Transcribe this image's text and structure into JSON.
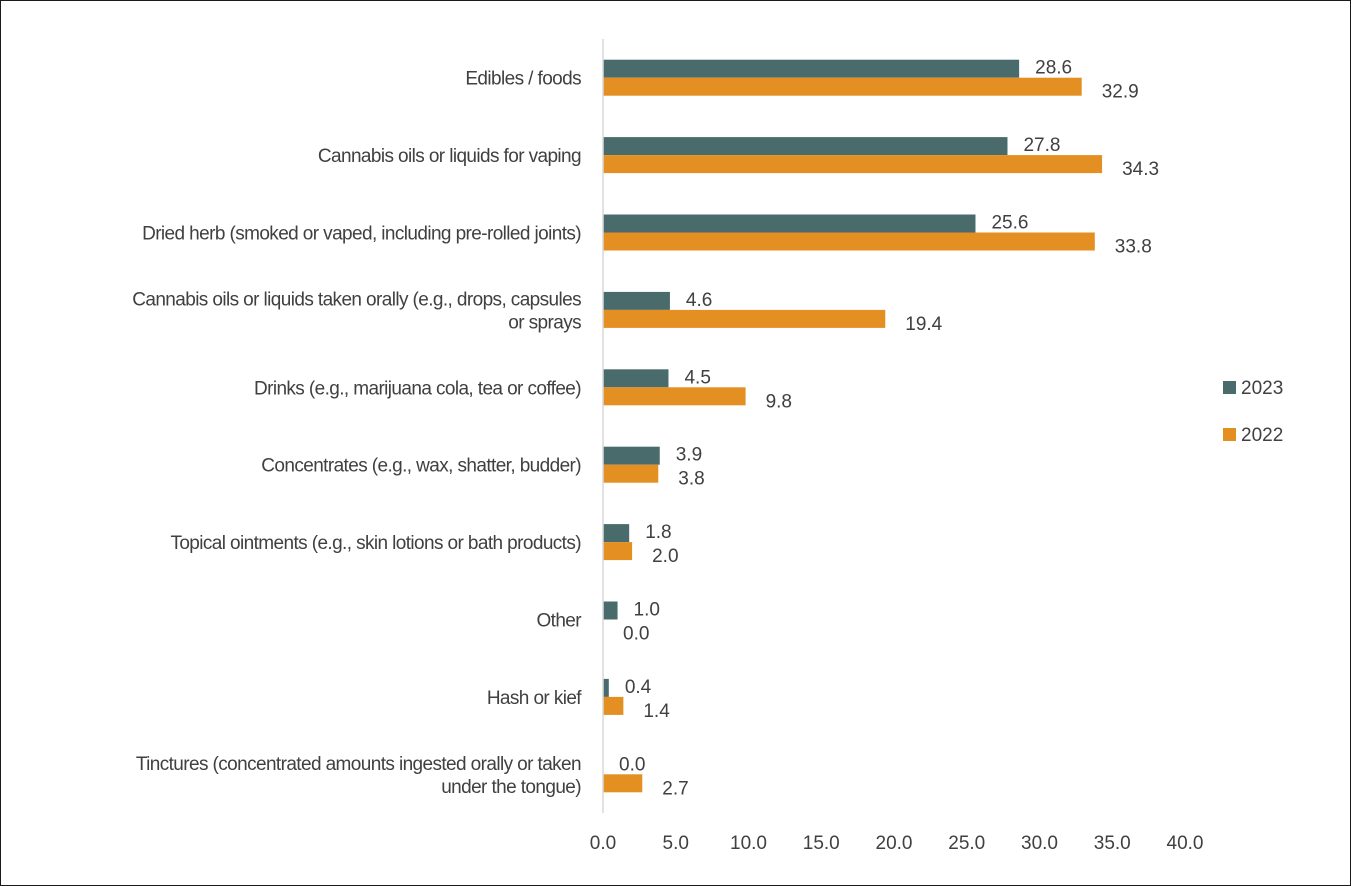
{
  "chart_data": {
    "type": "bar",
    "orientation": "horizontal",
    "categories": [
      [
        "Edibles / foods"
      ],
      [
        "Cannabis oils or liquids for vaping"
      ],
      [
        "Dried herb (smoked or vaped, including pre-rolled joints)"
      ],
      [
        "Cannabis oils or liquids taken orally (e.g., drops, capsules",
        "or sprays"
      ],
      [
        "Drinks (e.g., marijuana cola, tea or coffee)"
      ],
      [
        "Concentrates (e.g., wax, shatter, budder)"
      ],
      [
        "Topical ointments (e.g., skin lotions or bath products)"
      ],
      [
        "Other"
      ],
      [
        "Hash or kief"
      ],
      [
        "Tinctures (concentrated amounts ingested orally or taken",
        "under the tongue)"
      ]
    ],
    "series": [
      {
        "name": "2023",
        "color": "#4a6b6b",
        "values": [
          28.6,
          27.8,
          25.6,
          4.6,
          4.5,
          3.9,
          1.8,
          1.0,
          0.4,
          0.0
        ]
      },
      {
        "name": "2022",
        "color": "#e38f22",
        "values": [
          32.9,
          34.3,
          33.8,
          19.4,
          9.8,
          3.8,
          2.0,
          0.0,
          1.4,
          2.7
        ]
      }
    ],
    "value_labels": {
      "2023": [
        "28.6",
        "27.8",
        "25.6",
        "4.6",
        "4.5",
        "3.9",
        "1.8",
        "1.0",
        "0.4",
        "0.0"
      ],
      "2022": [
        "32.9",
        "34.3",
        "33.8",
        "19.4",
        "9.8",
        "3.8",
        "2.0",
        "0.0",
        "1.4",
        "2.7"
      ]
    },
    "xlim": [
      0,
      40
    ],
    "xticks": [
      "0.0",
      "5.0",
      "10.0",
      "15.0",
      "20.0",
      "25.0",
      "30.0",
      "35.0",
      "40.0"
    ],
    "title": "",
    "xlabel": "",
    "ylabel": "",
    "grid": false,
    "legend_position": "right"
  }
}
